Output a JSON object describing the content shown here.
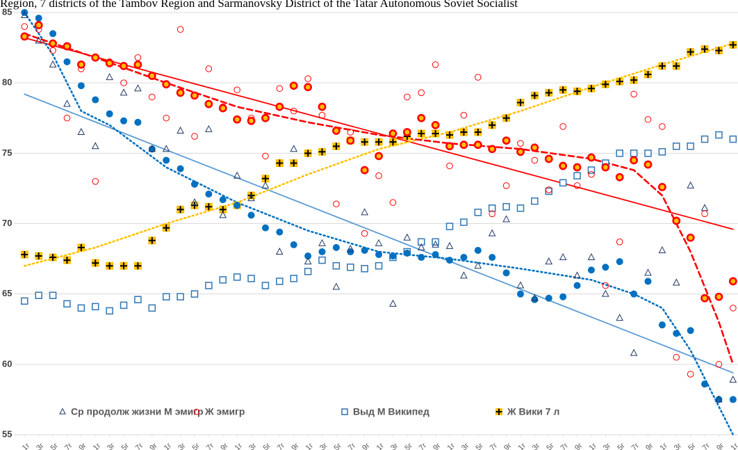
{
  "chart_data": {
    "type": "scatter",
    "title": "Region, 7 districts of the Tambov Region and Sarmanovsky District of the Tatar Autonomous Soviet Socialist",
    "x": [
      0,
      2,
      4,
      6,
      8,
      10,
      12,
      14,
      16,
      18,
      20,
      22,
      24,
      26,
      28,
      30,
      32,
      34,
      36,
      38,
      40,
      42,
      44,
      46,
      48,
      50,
      52,
      54,
      56,
      58,
      60,
      62,
      64,
      66,
      68,
      70,
      72,
      74,
      76,
      78,
      80,
      82,
      84,
      86,
      88,
      90,
      92,
      94,
      96,
      98,
      100
    ],
    "xlim": [
      -1.5,
      100.7
    ],
    "xticks": [
      {
        "value": 0,
        "label": "1г"
      },
      {
        "value": 2,
        "label": "3г"
      },
      {
        "value": 4,
        "label": "5г"
      },
      {
        "value": 6,
        "label": "7г"
      },
      {
        "value": 8,
        "label": "9г"
      },
      {
        "value": 10,
        "label": "1г"
      },
      {
        "value": 12,
        "label": "3г"
      },
      {
        "value": 14,
        "label": "5г"
      },
      {
        "value": 16,
        "label": "7г"
      },
      {
        "value": 18,
        "label": "9г"
      },
      {
        "value": 20,
        "label": "1г"
      },
      {
        "value": 22,
        "label": "3г"
      },
      {
        "value": 24,
        "label": "5г"
      },
      {
        "value": 26,
        "label": "7г"
      },
      {
        "value": 28,
        "label": "9г"
      },
      {
        "value": 30,
        "label": "1г"
      },
      {
        "value": 32,
        "label": "3г"
      },
      {
        "value": 34,
        "label": "5г"
      },
      {
        "value": 36,
        "label": "7г"
      },
      {
        "value": 38,
        "label": "9г"
      },
      {
        "value": 40,
        "label": "1г"
      },
      {
        "value": 42,
        "label": "3г"
      },
      {
        "value": 44,
        "label": "5г"
      },
      {
        "value": 46,
        "label": "7г"
      },
      {
        "value": 48,
        "label": "9г"
      },
      {
        "value": 50,
        "label": "1г"
      },
      {
        "value": 52,
        "label": "3г"
      },
      {
        "value": 54,
        "label": "5г"
      },
      {
        "value": 56,
        "label": "7г"
      },
      {
        "value": 58,
        "label": "9г"
      },
      {
        "value": 60,
        "label": "1г"
      },
      {
        "value": 62,
        "label": "3г"
      },
      {
        "value": 64,
        "label": "5г"
      },
      {
        "value": 66,
        "label": "7г"
      },
      {
        "value": 68,
        "label": "9г"
      },
      {
        "value": 70,
        "label": "1г"
      },
      {
        "value": 72,
        "label": "3г"
      },
      {
        "value": 74,
        "label": "5г"
      },
      {
        "value": 76,
        "label": "7г"
      },
      {
        "value": 78,
        "label": "9г"
      },
      {
        "value": 80,
        "label": "1г"
      },
      {
        "value": 82,
        "label": "3г"
      },
      {
        "value": 84,
        "label": "5г"
      },
      {
        "value": 86,
        "label": "7г"
      },
      {
        "value": 88,
        "label": "9г"
      },
      {
        "value": 90,
        "label": "1г"
      },
      {
        "value": 92,
        "label": "3г"
      },
      {
        "value": 94,
        "label": "5г"
      },
      {
        "value": 96,
        "label": "7г"
      },
      {
        "value": 98,
        "label": "9г"
      },
      {
        "value": 100,
        "label": "1г"
      }
    ],
    "ylim": [
      55,
      85
    ],
    "yticks": [
      55,
      60,
      65,
      70,
      75,
      80,
      85
    ],
    "grid": true,
    "legend": "bottom-left",
    "series": [
      {
        "name": "Выд М Википед",
        "marker": "square-open",
        "color": "#2e75b6",
        "values": [
          64.5,
          64.9,
          64.9,
          64.3,
          64.0,
          64.1,
          63.8,
          64.2,
          64.6,
          64.0,
          64.8,
          64.8,
          65.0,
          65.6,
          66.0,
          66.2,
          66.1,
          65.6,
          65.9,
          66.1,
          66.6,
          67.4,
          67.0,
          66.9,
          66.8,
          67.0,
          67.6,
          68.0,
          68.7,
          68.7,
          69.8,
          70.1,
          70.8,
          71.1,
          71.2,
          71.1,
          71.6,
          72.3,
          72.9,
          73.4,
          73.8,
          74.3,
          75.0,
          75.0,
          75.0,
          75.1,
          75.5,
          75.5,
          76.0,
          76.3,
          76.0
        ]
      },
      {
        "name": "Ж Вики 7 л",
        "marker": "plus-square",
        "color": "#ffc000",
        "values": [
          67.8,
          67.7,
          67.6,
          67.4,
          68.3,
          67.2,
          67.0,
          67.0,
          67.0,
          68.8,
          69.7,
          71.0,
          71.3,
          71.2,
          71.0,
          71.3,
          72.0,
          73.2,
          74.3,
          74.3,
          75.0,
          75.1,
          75.5,
          75.9,
          75.8,
          75.8,
          75.8,
          76.2,
          76.4,
          76.4,
          76.3,
          76.5,
          76.5,
          77.0,
          77.5,
          78.6,
          79.1,
          79.3,
          79.5,
          79.4,
          79.6,
          79.9,
          80.1,
          80.2,
          80.6,
          81.2,
          81.2,
          82.2,
          82.4,
          82.3,
          82.7
        ]
      },
      {
        "marker": "circle",
        "color": "#0070c0",
        "values": [
          85.0,
          84.6,
          83.5,
          81.5,
          79.8,
          78.8,
          77.8,
          77.3,
          77.2,
          75.3,
          74.5,
          73.9,
          72.8,
          72.1,
          71.7,
          71.3,
          70.6,
          69.7,
          69.4,
          68.5,
          67.7,
          68.0,
          68.3,
          68.0,
          68.1,
          67.8,
          67.7,
          67.9,
          67.6,
          67.8,
          67.4,
          67.6,
          68.1,
          67.6,
          66.5,
          65.0,
          64.6,
          64.7,
          64.8,
          65.6,
          66.7,
          66.9,
          67.3,
          65.0,
          65.9,
          62.8,
          62.2,
          62.4,
          58.6,
          57.5,
          57.5
        ]
      },
      {
        "name": "Ср продолж жизни М эмигр",
        "marker": "triangle",
        "color": "#1f3864",
        "values": [
          84.8,
          83.0,
          81.3,
          78.5,
          76.5,
          75.5,
          80.4,
          79.3,
          79.6,
          75.3,
          75.3,
          76.6,
          71.5,
          76.7,
          70.6,
          73.4,
          71.8,
          72.7,
          68.0,
          75.3,
          67.3,
          68.6,
          65.5,
          68.2,
          70.8,
          68.6,
          64.3,
          69.0,
          68.3,
          68.5,
          68.4,
          66.3,
          67.0,
          69.3,
          70.3,
          65.6,
          64.7,
          67.3,
          67.6,
          66.3,
          67.6,
          65.0,
          63.3,
          60.8,
          66.5,
          68.1,
          65.8,
          72.7,
          71.1,
          57.5,
          58.9
        ]
      },
      {
        "name": "Ж эмигр",
        "marker": "circle-open",
        "color": "#ff0000",
        "values": [
          84.0,
          83.8,
          82.3,
          77.5,
          81.0,
          73.0,
          81.5,
          80.0,
          81.8,
          79.0,
          77.5,
          83.8,
          76.2,
          81.0,
          78.3,
          79.5,
          77.5,
          74.8,
          79.6,
          78.0,
          80.3,
          77.7,
          71.4,
          76.5,
          69.3,
          73.4,
          71.5,
          79.0,
          79.3,
          81.3,
          74.1,
          77.7,
          80.4,
          70.7,
          72.7,
          75.7,
          74.5,
          72.4,
          76.9,
          72.7,
          73.5,
          65.6,
          68.7,
          79.2,
          77.4,
          76.9,
          60.5,
          59.3,
          70.7,
          60.0,
          64.0
        ]
      },
      {
        "marker": "circle-ring",
        "color": "#ff0000",
        "fill": "#ffc000",
        "values": [
          83.3,
          84.1,
          82.8,
          82.6,
          81.3,
          81.8,
          81.4,
          81.2,
          81.3,
          80.5,
          79.9,
          79.3,
          79.1,
          78.5,
          78.2,
          77.4,
          77.3,
          77.5,
          78.3,
          79.8,
          79.7,
          78.3,
          76.6,
          75.9,
          73.8,
          74.8,
          76.4,
          76.5,
          77.5,
          77.0,
          75.5,
          75.6,
          75.6,
          75.3,
          75.9,
          75.1,
          75.4,
          74.6,
          74.1,
          74.0,
          74.7,
          74.0,
          73.3,
          74.5,
          74.2,
          72.6,
          70.2,
          69.0,
          64.7,
          64.8,
          65.9
        ]
      }
    ],
    "trendlines": [
      {
        "color": "#5b9bd5",
        "style": "solid",
        "x": [
          0,
          100
        ],
        "values": [
          79.2,
          59.4
        ]
      },
      {
        "color": "#ff0000",
        "style": "solid",
        "x": [
          0,
          100
        ],
        "values": [
          83.2,
          69.6
        ]
      },
      {
        "color": "#ffc000",
        "style": "dotted",
        "x": [
          0,
          10,
          20,
          30,
          40,
          50,
          60,
          70,
          80,
          90,
          100
        ],
        "values": [
          67.0,
          68.3,
          70.0,
          71.5,
          73.5,
          75.3,
          76.5,
          78.0,
          79.7,
          81.3,
          82.8
        ]
      },
      {
        "color": "#0070c0",
        "style": "dotted",
        "x": [
          0,
          4,
          8,
          12,
          20,
          30,
          40,
          50,
          60,
          70,
          80,
          86,
          90,
          94,
          98,
          100
        ],
        "values": [
          85.0,
          82.0,
          78.0,
          77.0,
          74.0,
          71.5,
          69.5,
          68.0,
          67.5,
          66.8,
          66.0,
          65.0,
          64.0,
          61.0,
          57.0,
          55.0
        ]
      },
      {
        "color": "#ff0000",
        "style": "dashed",
        "x": [
          0,
          10,
          20,
          30,
          40,
          50,
          60,
          70,
          80,
          86,
          90,
          94,
          98,
          100
        ],
        "values": [
          83.5,
          81.8,
          80.0,
          78.3,
          77.2,
          76.3,
          75.7,
          75.3,
          74.6,
          73.8,
          72.0,
          68.0,
          63.0,
          60.0
        ]
      }
    ]
  }
}
